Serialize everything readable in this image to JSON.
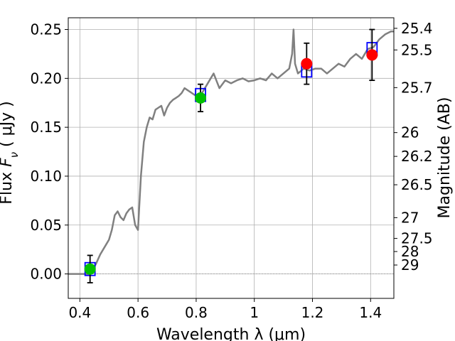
{
  "chart_data": {
    "type": "scatter",
    "xlabel": "Wavelength  λ (μm)",
    "ylabel": "Flux  F_ν  ( μJy )",
    "ylabel_right": "Magnitude (AB)",
    "xlim": [
      0.36,
      1.48
    ],
    "ylim": [
      -0.025,
      0.262
    ],
    "grid": true,
    "x_ticks": [
      0.4,
      0.6,
      0.8,
      1.0,
      1.2,
      1.4
    ],
    "x_tick_labels": [
      "0.4",
      "0.6",
      "0.8",
      "1",
      "1.2",
      "1.4"
    ],
    "y_ticks": [
      0.0,
      0.05,
      0.1,
      0.15,
      0.2,
      0.25
    ],
    "y_tick_labels": [
      "0.00",
      "0.05",
      "0.10",
      "0.15",
      "0.20",
      "0.25"
    ],
    "right_ticks": [
      {
        "mag": 25.4,
        "label": "25.4"
      },
      {
        "mag": 25.5,
        "label": "25.5"
      },
      {
        "mag": 25.7,
        "label": "25.7"
      },
      {
        "mag": 26.0,
        "label": "26"
      },
      {
        "mag": 26.2,
        "label": "26.2"
      },
      {
        "mag": 26.5,
        "label": "26.5"
      },
      {
        "mag": 27.0,
        "label": "27"
      },
      {
        "mag": 27.5,
        "label": "27.5"
      },
      {
        "mag": 28.0,
        "label": "28"
      },
      {
        "mag": 29.0,
        "label": "29"
      }
    ],
    "series": [
      {
        "kind": "line",
        "color": "#808080",
        "x": [
          0.36,
          0.43,
          0.44,
          0.455,
          0.47,
          0.49,
          0.5,
          0.51,
          0.52,
          0.53,
          0.54,
          0.55,
          0.56,
          0.57,
          0.58,
          0.59,
          0.6,
          0.61,
          0.62,
          0.63,
          0.64,
          0.65,
          0.66,
          0.67,
          0.68,
          0.69,
          0.7,
          0.71,
          0.72,
          0.73,
          0.74,
          0.75,
          0.76,
          0.78,
          0.8,
          0.82,
          0.84,
          0.86,
          0.88,
          0.9,
          0.92,
          0.94,
          0.96,
          0.98,
          1.0,
          1.02,
          1.04,
          1.06,
          1.08,
          1.1,
          1.12,
          1.13,
          1.135,
          1.14,
          1.15,
          1.17,
          1.19,
          1.21,
          1.23,
          1.25,
          1.27,
          1.29,
          1.31,
          1.33,
          1.35,
          1.37,
          1.39,
          1.41,
          1.43,
          1.45,
          1.47,
          1.48
        ],
        "y": [
          0.0,
          0.0,
          0.002,
          0.01,
          0.02,
          0.03,
          0.035,
          0.045,
          0.06,
          0.064,
          0.058,
          0.055,
          0.062,
          0.066,
          0.068,
          0.05,
          0.045,
          0.1,
          0.135,
          0.15,
          0.16,
          0.158,
          0.168,
          0.17,
          0.172,
          0.162,
          0.17,
          0.175,
          0.178,
          0.18,
          0.182,
          0.185,
          0.19,
          0.186,
          0.182,
          0.185,
          0.195,
          0.205,
          0.19,
          0.198,
          0.195,
          0.198,
          0.2,
          0.197,
          0.198,
          0.2,
          0.198,
          0.205,
          0.2,
          0.205,
          0.21,
          0.225,
          0.25,
          0.215,
          0.205,
          0.21,
          0.208,
          0.21,
          0.21,
          0.205,
          0.21,
          0.215,
          0.212,
          0.22,
          0.225,
          0.22,
          0.23,
          0.232,
          0.24,
          0.245,
          0.248,
          0.248
        ]
      },
      {
        "kind": "model_points",
        "marker": "open-square",
        "color": "#0000ff",
        "x": [
          0.435,
          0.815,
          1.18,
          1.405
        ],
        "y": [
          0.005,
          0.183,
          0.208,
          0.23
        ]
      },
      {
        "kind": "observed",
        "marker": "circle",
        "x": [
          0.435,
          0.815,
          1.18,
          1.405
        ],
        "y": [
          0.005,
          0.18,
          0.215,
          0.224
        ],
        "yerr": [
          0.014,
          0.014,
          0.021,
          0.026
        ],
        "colors": [
          "#00c000",
          "#00c000",
          "#ff0000",
          "#ff0000"
        ]
      }
    ]
  }
}
